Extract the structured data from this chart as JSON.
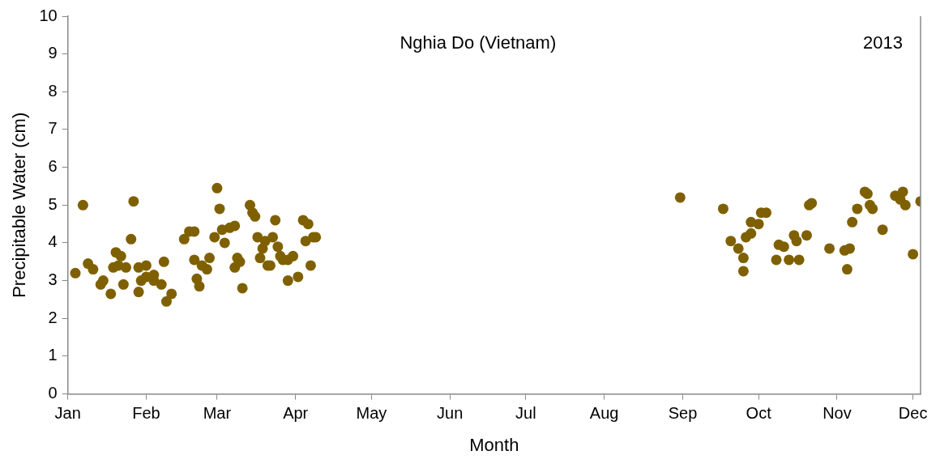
{
  "chart_data": {
    "type": "scatter",
    "annotations": [
      "Nghia Do (Vietnam)",
      "2013"
    ],
    "xlabel": "Month",
    "ylabel": "Precipitable Water (cm)",
    "series": [
      {
        "color": "#7f6000",
        "x": [
          "--01-04",
          "--01-07",
          "--01-09",
          "--01-11",
          "--01-14",
          "--01-15",
          "--01-18",
          "--01-19",
          "--01-20",
          "--01-22",
          "--01-21",
          "--01-23",
          "--01-24",
          "--01-26",
          "--01-27",
          "--01-29",
          "--01-29",
          "--01-30",
          "--02-01",
          "--02-01",
          "--02-04",
          "--02-04",
          "--02-07",
          "--02-08",
          "--02-09",
          "--02-11",
          "--02-16",
          "--02-18",
          "--02-20",
          "--02-20",
          "--02-21",
          "--02-22",
          "--02-23",
          "--02-25",
          "--02-26",
          "--02-28",
          "--03-01",
          "--03-02",
          "--03-03",
          "--03-04",
          "--03-06",
          "--03-08",
          "--03-08",
          "--03-09",
          "--03-10",
          "--03-11",
          "--03-14",
          "--03-15",
          "--03-16",
          "--03-17",
          "--03-18",
          "--03-19",
          "--03-20",
          "--03-21",
          "--03-22",
          "--03-23",
          "--03-24",
          "--03-25",
          "--03-26",
          "--03-27",
          "--03-29",
          "--03-29",
          "--03-31",
          "--04-02",
          "--04-04",
          "--04-05",
          "--04-06",
          "--04-07",
          "--04-08",
          "--04-09",
          "--08-31",
          "--09-17",
          "--09-20",
          "--09-23",
          "--09-25",
          "--09-25",
          "--09-26",
          "--09-28",
          "--09-28",
          "--10-01",
          "--10-02",
          "--10-04",
          "--10-08",
          "--10-09",
          "--10-11",
          "--10-13",
          "--10-15",
          "--10-16",
          "--10-17",
          "--10-20",
          "--10-21",
          "--10-22",
          "--10-29",
          "--11-04",
          "--11-05",
          "--11-06",
          "--11-07",
          "--11-09",
          "--11-12",
          "--11-13",
          "--11-14",
          "--11-15",
          "--11-19",
          "--11-24",
          "--11-26",
          "--11-27",
          "--11-28",
          "--12-01",
          "--12-04"
        ],
        "values": [
          3.2,
          5.0,
          3.45,
          3.3,
          2.9,
          3.0,
          2.65,
          3.35,
          3.75,
          3.65,
          3.4,
          2.9,
          3.35,
          4.1,
          5.1,
          3.35,
          2.7,
          3.0,
          3.1,
          3.4,
          3.0,
          3.15,
          2.9,
          3.5,
          2.45,
          2.65,
          4.1,
          4.3,
          4.3,
          3.55,
          3.05,
          2.85,
          3.4,
          3.3,
          3.6,
          4.15,
          5.45,
          4.9,
          4.35,
          4.0,
          4.4,
          4.45,
          3.35,
          3.6,
          3.5,
          2.8,
          5.0,
          4.8,
          4.7,
          4.15,
          3.6,
          3.85,
          4.05,
          3.4,
          3.4,
          4.15,
          4.6,
          3.9,
          3.65,
          3.55,
          3.55,
          3.0,
          3.65,
          3.1,
          4.6,
          4.05,
          4.5,
          3.4,
          4.15,
          4.15,
          5.2,
          4.9,
          4.05,
          3.85,
          3.6,
          3.25,
          4.15,
          4.25,
          4.55,
          4.5,
          4.8,
          4.8,
          3.55,
          3.95,
          3.9,
          3.55,
          4.2,
          4.05,
          3.55,
          4.2,
          5.0,
          5.05,
          3.85,
          3.8,
          3.3,
          3.85,
          4.55,
          4.9,
          5.35,
          5.3,
          5.0,
          4.9,
          4.35,
          5.25,
          5.15,
          5.35,
          5.0,
          3.7,
          5.1
        ]
      }
    ],
    "xlim": [
      "--01-01",
      "--12-04"
    ],
    "xticks": [
      {
        "value": "--01-01",
        "label": "Jan"
      },
      {
        "value": "--02-01",
        "label": "Feb"
      },
      {
        "value": "--03-01",
        "label": "Mar"
      },
      {
        "value": "--04-01",
        "label": "Apr"
      },
      {
        "value": "--05-01",
        "label": "May"
      },
      {
        "value": "--06-01",
        "label": "Jun"
      },
      {
        "value": "--07-01",
        "label": "Jul"
      },
      {
        "value": "--08-01",
        "label": "Aug"
      },
      {
        "value": "--09-01",
        "label": "Sep"
      },
      {
        "value": "--10-01",
        "label": "Oct"
      },
      {
        "value": "--11-01",
        "label": "Nov"
      },
      {
        "value": "--12-01",
        "label": "Dec"
      }
    ],
    "ylim": [
      0,
      10
    ],
    "yticks": [
      0,
      1,
      2,
      3,
      4,
      5,
      6,
      7,
      8,
      9,
      10
    ],
    "marker": "circle",
    "grid": false,
    "legend": false
  }
}
